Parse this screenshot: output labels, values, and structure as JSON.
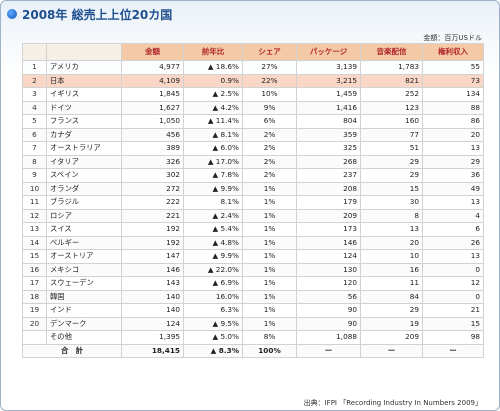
{
  "title": "2008年 総売上上位20カ国",
  "unit_note": "金額：百万USドル",
  "source_note": "出典：IFPI 「Recording Industry In Numbers 2009」",
  "columns": [
    "",
    "",
    "金額",
    "前年比",
    "シェア",
    "パッケージ",
    "音楽配信",
    "権利収入"
  ],
  "rows": [
    {
      "rank": "1",
      "country": "アメリカ",
      "amount": "4,977",
      "yoy": "▲ 18.6%",
      "share": "27%",
      "package": "3,139",
      "digital": "1,783",
      "rights": "55"
    },
    {
      "rank": "2",
      "country": "日本",
      "amount": "4,109",
      "yoy": "0.9%",
      "share": "22%",
      "package": "3,215",
      "digital": "821",
      "rights": "73"
    },
    {
      "rank": "3",
      "country": "イギリス",
      "amount": "1,845",
      "yoy": "▲ 2.5%",
      "share": "10%",
      "package": "1,459",
      "digital": "252",
      "rights": "134"
    },
    {
      "rank": "4",
      "country": "ドイツ",
      "amount": "1,627",
      "yoy": "▲ 4.2%",
      "share": "9%",
      "package": "1,416",
      "digital": "123",
      "rights": "88"
    },
    {
      "rank": "5",
      "country": "フランス",
      "amount": "1,050",
      "yoy": "▲ 11.4%",
      "share": "6%",
      "package": "804",
      "digital": "160",
      "rights": "86"
    },
    {
      "rank": "6",
      "country": "カナダ",
      "amount": "456",
      "yoy": "▲ 8.1%",
      "share": "2%",
      "package": "359",
      "digital": "77",
      "rights": "20"
    },
    {
      "rank": "7",
      "country": "オーストラリア",
      "amount": "389",
      "yoy": "▲ 6.0%",
      "share": "2%",
      "package": "325",
      "digital": "51",
      "rights": "13"
    },
    {
      "rank": "8",
      "country": "イタリア",
      "amount": "326",
      "yoy": "▲ 17.0%",
      "share": "2%",
      "package": "268",
      "digital": "29",
      "rights": "29"
    },
    {
      "rank": "9",
      "country": "スペイン",
      "amount": "302",
      "yoy": "▲ 7.8%",
      "share": "2%",
      "package": "237",
      "digital": "29",
      "rights": "36"
    },
    {
      "rank": "10",
      "country": "オランダ",
      "amount": "272",
      "yoy": "▲ 9.9%",
      "share": "1%",
      "package": "208",
      "digital": "15",
      "rights": "49"
    },
    {
      "rank": "11",
      "country": "ブラジル",
      "amount": "222",
      "yoy": "8.1%",
      "share": "1%",
      "package": "179",
      "digital": "30",
      "rights": "13"
    },
    {
      "rank": "12",
      "country": "ロシア",
      "amount": "221",
      "yoy": "▲ 2.4%",
      "share": "1%",
      "package": "209",
      "digital": "8",
      "rights": "4"
    },
    {
      "rank": "13",
      "country": "スイス",
      "amount": "192",
      "yoy": "▲ 5.4%",
      "share": "1%",
      "package": "173",
      "digital": "13",
      "rights": "6"
    },
    {
      "rank": "14",
      "country": "ベルギー",
      "amount": "192",
      "yoy": "▲ 4.8%",
      "share": "1%",
      "package": "146",
      "digital": "20",
      "rights": "26"
    },
    {
      "rank": "15",
      "country": "オーストリア",
      "amount": "147",
      "yoy": "▲ 9.9%",
      "share": "1%",
      "package": "124",
      "digital": "10",
      "rights": "13"
    },
    {
      "rank": "16",
      "country": "メキシコ",
      "amount": "146",
      "yoy": "▲ 22.0%",
      "share": "1%",
      "package": "130",
      "digital": "16",
      "rights": "0"
    },
    {
      "rank": "17",
      "country": "スウェーデン",
      "amount": "143",
      "yoy": "▲ 6.9%",
      "share": "1%",
      "package": "120",
      "digital": "11",
      "rights": "12"
    },
    {
      "rank": "18",
      "country": "韓国",
      "amount": "140",
      "yoy": "16.0%",
      "share": "1%",
      "package": "56",
      "digital": "84",
      "rights": "0"
    },
    {
      "rank": "19",
      "country": "インド",
      "amount": "140",
      "yoy": "6.3%",
      "share": "1%",
      "package": "90",
      "digital": "29",
      "rights": "21"
    },
    {
      "rank": "20",
      "country": "デンマーク",
      "amount": "124",
      "yoy": "▲ 9.5%",
      "share": "1%",
      "package": "90",
      "digital": "19",
      "rights": "15"
    },
    {
      "rank": "",
      "country": "その他",
      "amount": "1,395",
      "yoy": "▲ 5.0%",
      "share": "8%",
      "package": "1,088",
      "digital": "209",
      "rights": "98"
    }
  ],
  "total": {
    "label": "合　計",
    "amount": "18,415",
    "yoy": "▲ 8.3%",
    "share": "100%",
    "package": "ー",
    "digital": "ー",
    "rights": "ー"
  },
  "colors": {
    "header_bg": "#f4c9a6",
    "header_text": "#b0282b",
    "highlight_row": "#f9d6c6",
    "total_row": "#e3efd0",
    "title": "#1d4f8f"
  }
}
